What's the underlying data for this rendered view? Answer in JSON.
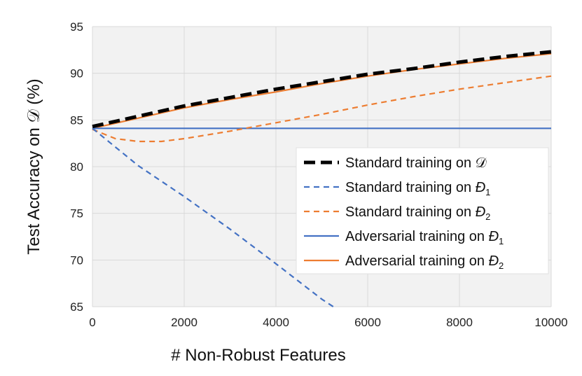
{
  "chart_data": {
    "type": "line",
    "title": "",
    "xlabel": "# Non-Robust Features",
    "ylabel": "Test Accuracy on 𝒟 (%)",
    "xlim": [
      0,
      10000
    ],
    "ylim": [
      65,
      95
    ],
    "xticks": [
      0,
      2000,
      4000,
      6000,
      8000,
      10000
    ],
    "yticks": [
      65,
      70,
      75,
      80,
      85,
      90,
      95
    ],
    "grid": true,
    "legend_position": "center-right",
    "series": [
      {
        "name": "Standard training on 𝒟",
        "color": "#000000",
        "dash": "long-dash",
        "points": [
          [
            0,
            84.3
          ],
          [
            1000,
            85.4
          ],
          [
            2000,
            86.5
          ],
          [
            3000,
            87.4
          ],
          [
            4000,
            88.3
          ],
          [
            5000,
            89.1
          ],
          [
            6000,
            89.9
          ],
          [
            7000,
            90.5
          ],
          [
            8000,
            91.2
          ],
          [
            9000,
            91.8
          ],
          [
            10000,
            92.3
          ]
        ]
      },
      {
        "name": "Standard training on Đ₁",
        "legend_base": "Standard training on ",
        "legend_sub": "1",
        "color": "#4472C4",
        "dash": "dashed",
        "points": [
          [
            0,
            84.1
          ],
          [
            1000,
            80.1
          ],
          [
            2000,
            76.8
          ],
          [
            3000,
            73.3
          ],
          [
            4000,
            69.6
          ],
          [
            5000,
            65.8
          ],
          [
            5250,
            65.0
          ]
        ]
      },
      {
        "name": "Standard training on Đ₂",
        "legend_base": "Standard training on ",
        "legend_sub": "2",
        "color": "#ED7D31",
        "dash": "dashed",
        "points": [
          [
            0,
            84.0
          ],
          [
            500,
            83.0
          ],
          [
            1000,
            82.7
          ],
          [
            1500,
            82.7
          ],
          [
            2000,
            83.0
          ],
          [
            3000,
            83.8
          ],
          [
            4000,
            84.7
          ],
          [
            5000,
            85.6
          ],
          [
            6000,
            86.6
          ],
          [
            7000,
            87.5
          ],
          [
            8000,
            88.3
          ],
          [
            9000,
            89.0
          ],
          [
            10000,
            89.7
          ]
        ]
      },
      {
        "name": "Adversarial training on Đ₁",
        "legend_base": "Adversarial training on ",
        "legend_sub": "1",
        "color": "#4472C4",
        "dash": "solid",
        "points": [
          [
            0,
            84.1
          ],
          [
            10000,
            84.1
          ]
        ]
      },
      {
        "name": "Adversarial training on Đ₂",
        "legend_base": "Adversarial training on ",
        "legend_sub": "2",
        "color": "#ED7D31",
        "dash": "solid",
        "points": [
          [
            0,
            84.1
          ],
          [
            1000,
            85.2
          ],
          [
            2000,
            86.3
          ],
          [
            3000,
            87.2
          ],
          [
            4000,
            88.0
          ],
          [
            5000,
            88.9
          ],
          [
            6000,
            89.7
          ],
          [
            7000,
            90.4
          ],
          [
            8000,
            91.0
          ],
          [
            9000,
            91.6
          ],
          [
            10000,
            92.1
          ]
        ]
      }
    ]
  }
}
